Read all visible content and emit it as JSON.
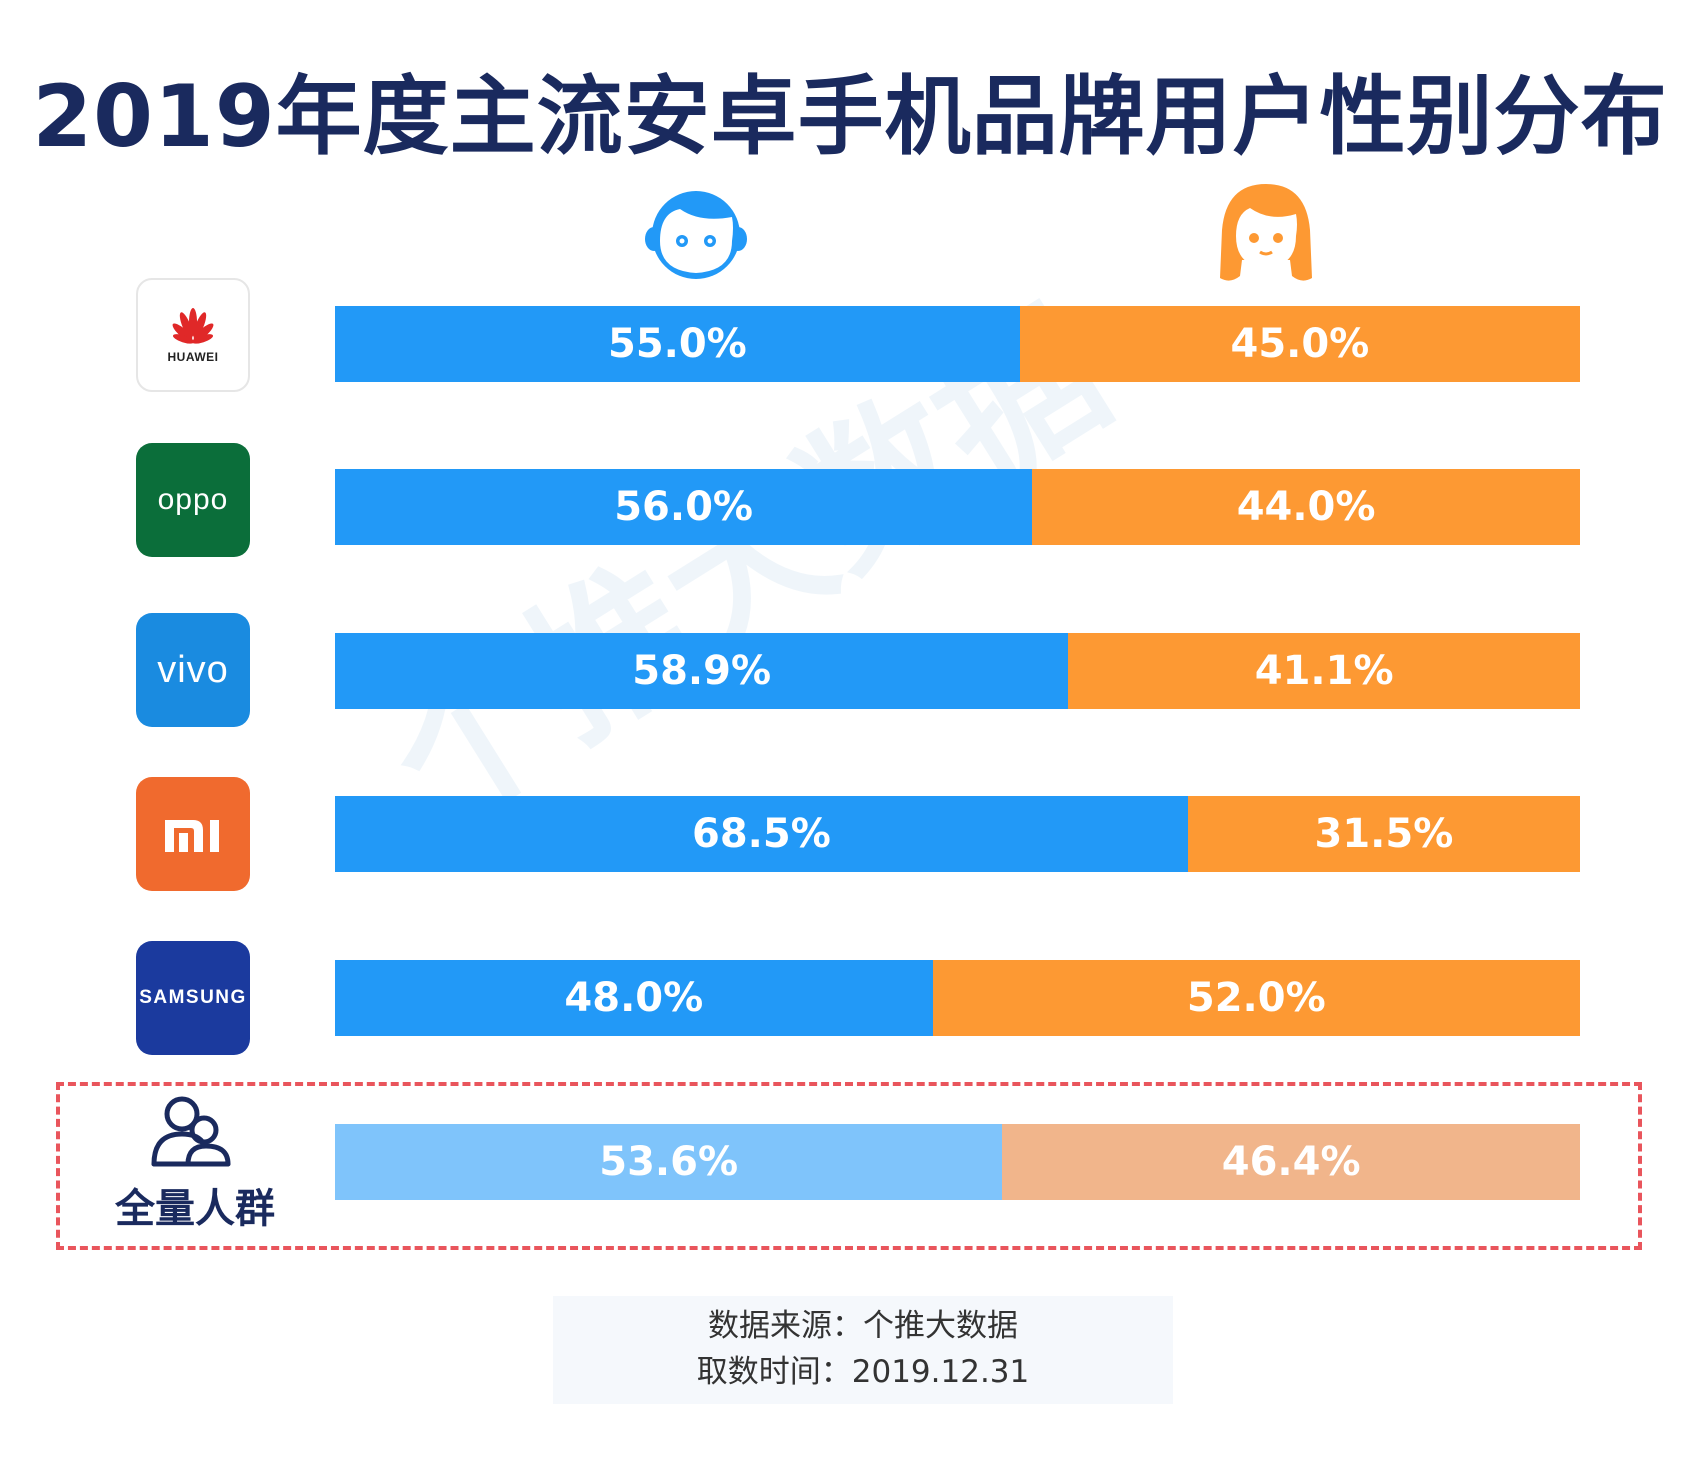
{
  "title": "2019年度主流安卓手机品牌用户性别分布",
  "legend": {
    "male_icon": "boy-face-icon",
    "female_icon": "girl-face-icon"
  },
  "colors": {
    "male": "#2299f7",
    "female": "#fd9933",
    "male_total": "#7fc4fb",
    "female_total": "#f1b58b",
    "title": "#1a2a5e"
  },
  "brands": {
    "huawei_text": "HUAWEI",
    "oppo_text": "oppo",
    "vivo_text": "vivo",
    "mi_text": "mi",
    "samsung_text": "SAMSUNG",
    "total_text": "全量人群"
  },
  "chart_data": {
    "type": "bar",
    "orientation": "horizontal-stacked-100",
    "title": "2019年度主流安卓手机品牌用户性别分布",
    "categories": [
      "HUAWEI",
      "OPPO",
      "vivo",
      "Mi",
      "SAMSUNG",
      "全量人群"
    ],
    "series": [
      {
        "name": "男",
        "values": [
          55.0,
          56.0,
          58.9,
          68.5,
          48.0,
          53.6
        ]
      },
      {
        "name": "女",
        "values": [
          45.0,
          44.0,
          41.1,
          31.5,
          52.0,
          46.4
        ]
      }
    ],
    "labels_male": [
      "55.0%",
      "56.0%",
      "58.9%",
      "68.5%",
      "48.0%",
      "53.6%"
    ],
    "labels_female": [
      "45.0%",
      "44.0%",
      "41.1%",
      "31.5%",
      "52.0%",
      "46.4%"
    ],
    "xlim": [
      0,
      100
    ],
    "unit": "%"
  },
  "watermark": "个推大数据",
  "source": {
    "line1": "数据来源：个推大数据",
    "line2": "取数时间：2019.12.31"
  }
}
